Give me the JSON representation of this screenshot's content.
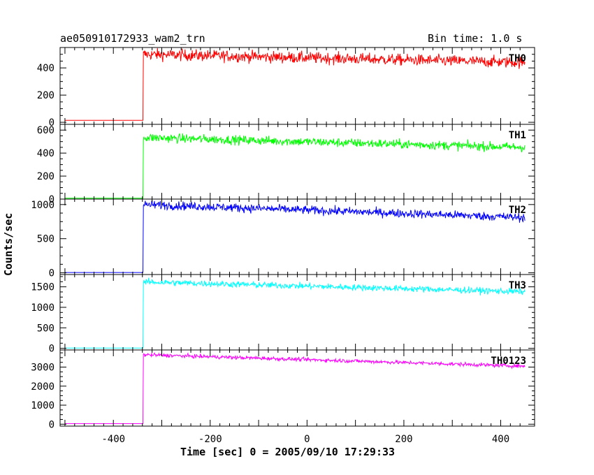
{
  "chart_data": {
    "type": "line",
    "title": "ae050910172933_wam2_trn",
    "subtitle": "Bin time: 1.0 s",
    "xlabel": "Time [sec] 0 = 2005/09/10 17:29:33",
    "ylabel": "Counts/sec",
    "xlim": [
      -510,
      470
    ],
    "x_ticks": [
      -400,
      -200,
      0,
      200,
      400
    ],
    "onset_x": -338,
    "x_range": [
      -500,
      450
    ],
    "grid": false,
    "panels": [
      {
        "name": "TH0",
        "color": "#ff0000",
        "ylim": [
          -15,
          550
        ],
        "y_ticks": [
          0,
          200,
          400
        ],
        "pre_level": 15,
        "peak_level": 500,
        "end_level": 440,
        "noise": 30
      },
      {
        "name": "TH1",
        "color": "#00ff00",
        "ylim": [
          0,
          650
        ],
        "y_ticks": [
          0,
          200,
          400,
          600
        ],
        "pre_level": 8,
        "peak_level": 535,
        "end_level": 450,
        "noise": 28
      },
      {
        "name": "TH2",
        "color": "#0000ff",
        "ylim": [
          -25,
          1080
        ],
        "y_ticks": [
          0,
          500,
          1000
        ],
        "pre_level": 5,
        "peak_level": 1000,
        "end_level": 810,
        "noise": 45
      },
      {
        "name": "TH3",
        "color": "#00ffff",
        "ylim": [
          -40,
          1800
        ],
        "y_ticks": [
          0,
          500,
          1000,
          1500
        ],
        "pre_level": 8,
        "peak_level": 1620,
        "end_level": 1380,
        "noise": 55
      },
      {
        "name": "TH0123",
        "color": "#ff00ff",
        "ylim": [
          -100,
          3900
        ],
        "y_ticks": [
          0,
          1000,
          2000,
          3000
        ],
        "pre_level": 30,
        "peak_level": 3650,
        "end_level": 3050,
        "noise": 70
      }
    ]
  }
}
